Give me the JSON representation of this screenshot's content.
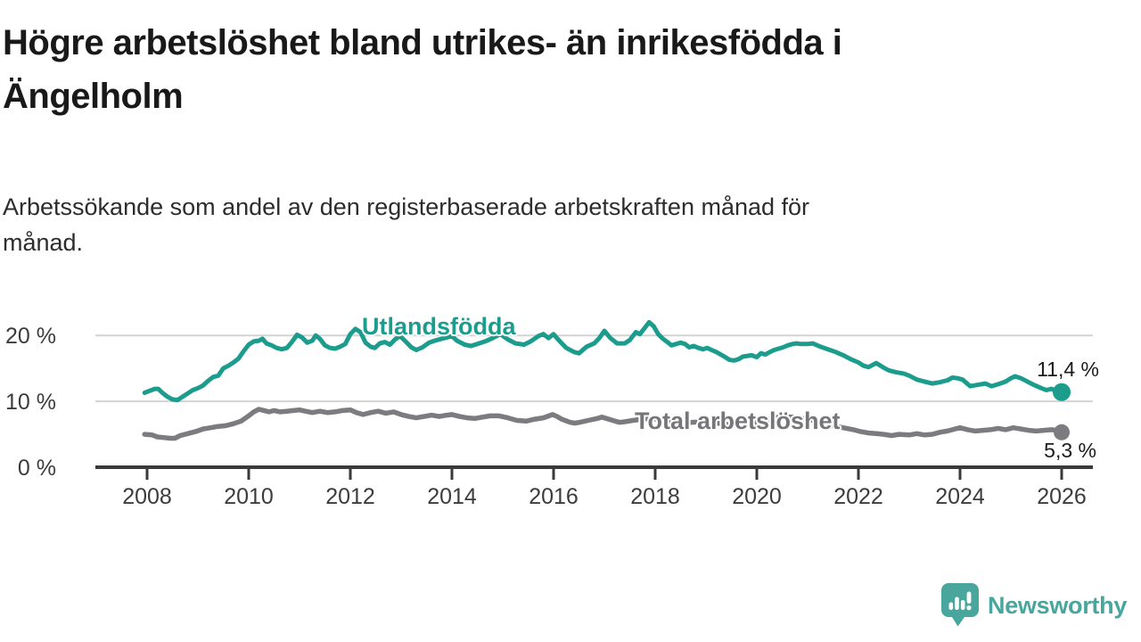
{
  "header": {
    "title_lines": [
      "Högre arbetslöshet bland utrikes- än inrikesfödda i",
      "Ängelholm"
    ],
    "subtitle_lines": [
      "Arbetssökande som andel av den registerbaserade arbetskraften månad för",
      "månad."
    ]
  },
  "chart_data": {
    "type": "line",
    "x_unit": "decimal_year_monthly",
    "xlim": [
      2007.9,
      2026.6
    ],
    "ylim": [
      0,
      23
    ],
    "grid": "horizontal",
    "axis_color": "#3a3a3a",
    "grid_color": "#d3d3d3",
    "tick_label_color": "#3c3c3c",
    "xticks": [
      2008,
      2010,
      2012,
      2014,
      2016,
      2018,
      2020,
      2022,
      2024,
      2026
    ],
    "yticks": [
      {
        "value": 0,
        "label": "0 %"
      },
      {
        "value": 10,
        "label": "10 %"
      },
      {
        "value": 20,
        "label": "20 %"
      }
    ],
    "series": [
      {
        "name": "Utlandsfödda",
        "label": "Utlandsfödda",
        "color": "#1b9c8d",
        "end_label": "11,4 %",
        "latest_value": 11.4,
        "points": [
          [
            2007.95,
            11.3
          ],
          [
            2008.05,
            11.6
          ],
          [
            2008.15,
            11.9
          ],
          [
            2008.22,
            11.9
          ],
          [
            2008.3,
            11.3
          ],
          [
            2008.4,
            10.7
          ],
          [
            2008.5,
            10.3
          ],
          [
            2008.6,
            10.2
          ],
          [
            2008.7,
            10.7
          ],
          [
            2008.8,
            11.2
          ],
          [
            2008.9,
            11.7
          ],
          [
            2009.0,
            12.0
          ],
          [
            2009.1,
            12.4
          ],
          [
            2009.2,
            13.1
          ],
          [
            2009.3,
            13.7
          ],
          [
            2009.4,
            13.9
          ],
          [
            2009.5,
            15.0
          ],
          [
            2009.6,
            15.4
          ],
          [
            2009.7,
            15.9
          ],
          [
            2009.8,
            16.5
          ],
          [
            2009.9,
            17.6
          ],
          [
            2010.0,
            18.6
          ],
          [
            2010.1,
            19.1
          ],
          [
            2010.2,
            19.2
          ],
          [
            2010.27,
            19.5
          ],
          [
            2010.35,
            18.8
          ],
          [
            2010.45,
            18.5
          ],
          [
            2010.55,
            18.1
          ],
          [
            2010.65,
            17.9
          ],
          [
            2010.75,
            18.1
          ],
          [
            2010.85,
            19.0
          ],
          [
            2010.95,
            20.1
          ],
          [
            2011.05,
            19.7
          ],
          [
            2011.15,
            18.9
          ],
          [
            2011.25,
            19.2
          ],
          [
            2011.32,
            20.0
          ],
          [
            2011.4,
            19.5
          ],
          [
            2011.5,
            18.5
          ],
          [
            2011.6,
            18.1
          ],
          [
            2011.7,
            18.0
          ],
          [
            2011.8,
            18.3
          ],
          [
            2011.9,
            18.7
          ],
          [
            2012.0,
            20.2
          ],
          [
            2012.1,
            21.0
          ],
          [
            2012.2,
            20.5
          ],
          [
            2012.3,
            18.9
          ],
          [
            2012.4,
            18.3
          ],
          [
            2012.48,
            18.1
          ],
          [
            2012.58,
            18.8
          ],
          [
            2012.68,
            19.0
          ],
          [
            2012.78,
            18.6
          ],
          [
            2012.88,
            19.4
          ],
          [
            2012.98,
            19.9
          ],
          [
            2013.1,
            19.0
          ],
          [
            2013.2,
            18.2
          ],
          [
            2013.3,
            17.8
          ],
          [
            2013.42,
            18.2
          ],
          [
            2013.55,
            18.9
          ],
          [
            2013.7,
            19.3
          ],
          [
            2013.85,
            19.6
          ],
          [
            2014.0,
            19.9
          ],
          [
            2014.1,
            19.2
          ],
          [
            2014.25,
            18.6
          ],
          [
            2014.37,
            18.4
          ],
          [
            2014.5,
            18.7
          ],
          [
            2014.65,
            19.1
          ],
          [
            2014.8,
            19.6
          ],
          [
            2014.95,
            20.2
          ],
          [
            2015.1,
            19.4
          ],
          [
            2015.25,
            18.8
          ],
          [
            2015.42,
            18.6
          ],
          [
            2015.55,
            19.1
          ],
          [
            2015.7,
            19.9
          ],
          [
            2015.8,
            20.2
          ],
          [
            2015.9,
            19.6
          ],
          [
            2016.0,
            20.2
          ],
          [
            2016.1,
            19.3
          ],
          [
            2016.25,
            18.1
          ],
          [
            2016.4,
            17.5
          ],
          [
            2016.5,
            17.3
          ],
          [
            2016.65,
            18.3
          ],
          [
            2016.8,
            18.8
          ],
          [
            2016.9,
            19.6
          ],
          [
            2017.0,
            20.7
          ],
          [
            2017.12,
            19.6
          ],
          [
            2017.25,
            18.8
          ],
          [
            2017.4,
            18.8
          ],
          [
            2017.5,
            19.3
          ],
          [
            2017.62,
            20.5
          ],
          [
            2017.7,
            20.2
          ],
          [
            2017.88,
            22.0
          ],
          [
            2017.97,
            21.4
          ],
          [
            2018.06,
            20.2
          ],
          [
            2018.15,
            19.5
          ],
          [
            2018.24,
            19.0
          ],
          [
            2018.32,
            18.5
          ],
          [
            2018.41,
            18.7
          ],
          [
            2018.5,
            18.9
          ],
          [
            2018.59,
            18.7
          ],
          [
            2018.67,
            18.2
          ],
          [
            2018.76,
            18.4
          ],
          [
            2018.85,
            18.1
          ],
          [
            2018.94,
            17.9
          ],
          [
            2019.02,
            18.1
          ],
          [
            2019.11,
            17.8
          ],
          [
            2019.2,
            17.5
          ],
          [
            2019.29,
            17.1
          ],
          [
            2019.38,
            16.7
          ],
          [
            2019.46,
            16.3
          ],
          [
            2019.55,
            16.2
          ],
          [
            2019.64,
            16.4
          ],
          [
            2019.73,
            16.8
          ],
          [
            2019.82,
            16.9
          ],
          [
            2019.9,
            17.0
          ],
          [
            2020.0,
            16.7
          ],
          [
            2020.08,
            17.3
          ],
          [
            2020.17,
            17.1
          ],
          [
            2020.26,
            17.5
          ],
          [
            2020.34,
            17.8
          ],
          [
            2020.43,
            18.0
          ],
          [
            2020.52,
            18.2
          ],
          [
            2020.61,
            18.5
          ],
          [
            2020.7,
            18.7
          ],
          [
            2020.78,
            18.8
          ],
          [
            2020.87,
            18.7
          ],
          [
            2021.0,
            18.7
          ],
          [
            2021.1,
            18.8
          ],
          [
            2021.25,
            18.3
          ],
          [
            2021.4,
            17.9
          ],
          [
            2021.55,
            17.5
          ],
          [
            2021.7,
            17.0
          ],
          [
            2021.85,
            16.4
          ],
          [
            2022.0,
            15.9
          ],
          [
            2022.1,
            15.4
          ],
          [
            2022.2,
            15.2
          ],
          [
            2022.35,
            15.8
          ],
          [
            2022.5,
            15.1
          ],
          [
            2022.6,
            14.7
          ],
          [
            2022.75,
            14.4
          ],
          [
            2022.9,
            14.2
          ],
          [
            2023.0,
            13.9
          ],
          [
            2023.15,
            13.3
          ],
          [
            2023.3,
            13.0
          ],
          [
            2023.45,
            12.7
          ],
          [
            2023.6,
            12.9
          ],
          [
            2023.75,
            13.2
          ],
          [
            2023.85,
            13.6
          ],
          [
            2023.95,
            13.5
          ],
          [
            2024.05,
            13.3
          ],
          [
            2024.2,
            12.3
          ],
          [
            2024.35,
            12.5
          ],
          [
            2024.5,
            12.7
          ],
          [
            2024.62,
            12.3
          ],
          [
            2024.75,
            12.6
          ],
          [
            2024.9,
            13.0
          ],
          [
            2025.0,
            13.5
          ],
          [
            2025.08,
            13.8
          ],
          [
            2025.2,
            13.5
          ],
          [
            2025.3,
            13.1
          ],
          [
            2025.45,
            12.5
          ],
          [
            2025.6,
            12.0
          ],
          [
            2025.7,
            11.7
          ],
          [
            2025.8,
            11.9
          ],
          [
            2025.9,
            11.5
          ],
          [
            2026.0,
            11.4
          ]
        ]
      },
      {
        "name": "Total arbetslöshet",
        "label": "Total arbetslöshet",
        "color": "#7b7b80",
        "end_label": "5,3 %",
        "latest_value": 5.3,
        "points": [
          [
            2007.95,
            5.0
          ],
          [
            2008.1,
            4.9
          ],
          [
            2008.2,
            4.6
          ],
          [
            2008.32,
            4.5
          ],
          [
            2008.45,
            4.4
          ],
          [
            2008.55,
            4.4
          ],
          [
            2008.65,
            4.8
          ],
          [
            2008.8,
            5.1
          ],
          [
            2008.95,
            5.4
          ],
          [
            2009.1,
            5.8
          ],
          [
            2009.25,
            6.0
          ],
          [
            2009.4,
            6.2
          ],
          [
            2009.55,
            6.3
          ],
          [
            2009.7,
            6.6
          ],
          [
            2009.85,
            7.0
          ],
          [
            2010.0,
            7.8
          ],
          [
            2010.1,
            8.4
          ],
          [
            2010.2,
            8.8
          ],
          [
            2010.3,
            8.6
          ],
          [
            2010.4,
            8.4
          ],
          [
            2010.5,
            8.6
          ],
          [
            2010.62,
            8.4
          ],
          [
            2010.75,
            8.5
          ],
          [
            2010.88,
            8.6
          ],
          [
            2011.0,
            8.7
          ],
          [
            2011.12,
            8.5
          ],
          [
            2011.25,
            8.3
          ],
          [
            2011.4,
            8.5
          ],
          [
            2011.55,
            8.3
          ],
          [
            2011.7,
            8.4
          ],
          [
            2011.85,
            8.6
          ],
          [
            2012.0,
            8.7
          ],
          [
            2012.12,
            8.3
          ],
          [
            2012.25,
            8.0
          ],
          [
            2012.4,
            8.3
          ],
          [
            2012.55,
            8.5
          ],
          [
            2012.7,
            8.2
          ],
          [
            2012.85,
            8.4
          ],
          [
            2013.0,
            8.0
          ],
          [
            2013.15,
            7.7
          ],
          [
            2013.3,
            7.5
          ],
          [
            2013.45,
            7.7
          ],
          [
            2013.6,
            7.9
          ],
          [
            2013.75,
            7.7
          ],
          [
            2013.9,
            7.9
          ],
          [
            2014.0,
            8.0
          ],
          [
            2014.15,
            7.7
          ],
          [
            2014.3,
            7.5
          ],
          [
            2014.45,
            7.4
          ],
          [
            2014.6,
            7.6
          ],
          [
            2014.75,
            7.8
          ],
          [
            2014.93,
            7.8
          ],
          [
            2015.1,
            7.5
          ],
          [
            2015.28,
            7.1
          ],
          [
            2015.46,
            7.0
          ],
          [
            2015.63,
            7.3
          ],
          [
            2015.8,
            7.5
          ],
          [
            2015.98,
            8.0
          ],
          [
            2016.07,
            7.7
          ],
          [
            2016.16,
            7.3
          ],
          [
            2016.33,
            6.8
          ],
          [
            2016.42,
            6.7
          ],
          [
            2016.51,
            6.8
          ],
          [
            2016.68,
            7.1
          ],
          [
            2016.86,
            7.4
          ],
          [
            2016.95,
            7.6
          ],
          [
            2017.04,
            7.4
          ],
          [
            2017.21,
            7.0
          ],
          [
            2017.3,
            6.8
          ],
          [
            2017.4,
            6.9
          ],
          [
            2017.56,
            7.1
          ],
          [
            2017.74,
            7.3
          ],
          [
            2017.9,
            7.4
          ],
          [
            2018.05,
            7.3
          ],
          [
            2018.2,
            7.1
          ],
          [
            2018.35,
            7.0
          ],
          [
            2018.5,
            6.9
          ],
          [
            2018.7,
            6.8
          ],
          [
            2018.9,
            6.9
          ],
          [
            2019.1,
            6.8
          ],
          [
            2019.3,
            6.6
          ],
          [
            2019.5,
            6.4
          ],
          [
            2019.7,
            6.5
          ],
          [
            2019.9,
            6.7
          ],
          [
            2020.1,
            7.0
          ],
          [
            2020.3,
            7.4
          ],
          [
            2020.5,
            7.7
          ],
          [
            2020.7,
            7.6
          ],
          [
            2020.9,
            7.4
          ],
          [
            2021.1,
            7.1
          ],
          [
            2021.3,
            6.7
          ],
          [
            2021.5,
            6.3
          ],
          [
            2021.7,
            6.0
          ],
          [
            2021.9,
            5.7
          ],
          [
            2022.05,
            5.4
          ],
          [
            2022.2,
            5.2
          ],
          [
            2022.35,
            5.1
          ],
          [
            2022.5,
            5.0
          ],
          [
            2022.65,
            4.8
          ],
          [
            2022.8,
            5.0
          ],
          [
            2023.0,
            4.9
          ],
          [
            2023.15,
            5.1
          ],
          [
            2023.3,
            4.9
          ],
          [
            2023.45,
            5.0
          ],
          [
            2023.6,
            5.3
          ],
          [
            2023.75,
            5.5
          ],
          [
            2023.9,
            5.8
          ],
          [
            2024.0,
            6.0
          ],
          [
            2024.15,
            5.7
          ],
          [
            2024.3,
            5.5
          ],
          [
            2024.45,
            5.6
          ],
          [
            2024.6,
            5.7
          ],
          [
            2024.75,
            5.9
          ],
          [
            2024.9,
            5.7
          ],
          [
            2025.05,
            6.0
          ],
          [
            2025.2,
            5.8
          ],
          [
            2025.35,
            5.6
          ],
          [
            2025.5,
            5.5
          ],
          [
            2025.65,
            5.6
          ],
          [
            2025.8,
            5.7
          ],
          [
            2025.9,
            5.6
          ],
          [
            2026.0,
            5.3
          ]
        ]
      }
    ]
  },
  "footer": {
    "brand": "Newsworthy",
    "logo_icon": "bar-chart-speech-bubble-icon",
    "brand_color": "#48a69d"
  }
}
